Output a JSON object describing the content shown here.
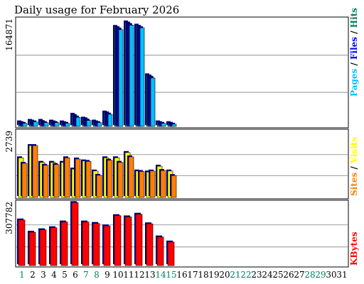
{
  "title": "Daily usage for February 2026",
  "colors": {
    "title": "#0000ff",
    "hits": "#00805c",
    "files": "#0000ff",
    "pages": "#00c0ff",
    "visits": "#ffff00",
    "sites": "#ff8000",
    "kbytes": "#ff0000",
    "weekend_day": "#00805c",
    "weekday": "#000000"
  },
  "days": [
    "1",
    "2",
    "3",
    "4",
    "5",
    "6",
    "7",
    "8",
    "9",
    "10",
    "11",
    "12",
    "13",
    "14",
    "15",
    "16",
    "17",
    "18",
    "19",
    "20",
    "21",
    "22",
    "23",
    "24",
    "25",
    "26",
    "27",
    "28",
    "29",
    "30",
    "31"
  ],
  "weekend_days": [
    1,
    7,
    8,
    14,
    15,
    21,
    22,
    28,
    29
  ],
  "chart_data": [
    {
      "type": "bar",
      "name": "hits-files-pages",
      "ymax_label": "164871",
      "ylim": [
        0,
        164871
      ],
      "legend": {
        "pages": "Pages",
        "files": "Files",
        "hits": "Hits",
        "sep": "/"
      },
      "series": [
        {
          "name": "Hits",
          "values": [
            7000,
            9300,
            9300,
            8200,
            7000,
            18800,
            12800,
            8200,
            22200,
            155000,
            162000,
            157000,
            80000,
            7000,
            5800
          ]
        },
        {
          "name": "Files",
          "values": [
            5800,
            8200,
            7000,
            7000,
            5800,
            16400,
            11700,
            7000,
            21000,
            153000,
            160000,
            155000,
            78000,
            5800,
            4700
          ]
        },
        {
          "name": "Pages",
          "values": [
            4700,
            7000,
            5800,
            5800,
            4700,
            14000,
            9300,
            5800,
            18800,
            150000,
            157000,
            153000,
            75000,
            4700,
            3500
          ]
        }
      ]
    },
    {
      "type": "bar",
      "name": "visits-sites",
      "ymax_label": "2739",
      "ylim": [
        0,
        2739
      ],
      "legend": {
        "sites": "Sites",
        "visits": "Visits",
        "sep": "/"
      },
      "series": [
        {
          "name": "Visits",
          "values": [
            1650,
            2160,
            1460,
            1460,
            1460,
            1180,
            1520,
            1100,
            1650,
            1650,
            1870,
            1100,
            1060,
            1300,
            1100
          ]
        },
        {
          "name": "Sites",
          "values": [
            1420,
            2160,
            1340,
            1370,
            1650,
            1600,
            1500,
            920,
            1550,
            1460,
            1690,
            1080,
            1100,
            1120,
            910
          ]
        }
      ]
    },
    {
      "type": "bar",
      "name": "kbytes",
      "ymax_label": "307782",
      "ylim": [
        0,
        307782
      ],
      "legend": {
        "kbytes": "KBytes"
      },
      "series": [
        {
          "name": "KBytes",
          "values": [
            223000,
            163000,
            175000,
            185000,
            213000,
            307782,
            213000,
            206000,
            194000,
            244000,
            238000,
            251000,
            204000,
            140000,
            115000
          ]
        }
      ]
    }
  ]
}
